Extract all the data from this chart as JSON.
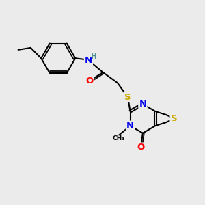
{
  "background_color": "#ebebeb",
  "bond_color": "#000000",
  "bond_width": 1.5,
  "atom_colors": {
    "O": "#ff0000",
    "N": "#0000ee",
    "S": "#ccaa00",
    "H": "#4a9090",
    "C": "#000000"
  },
  "font_size": 8.5,
  "fig_width": 3.0,
  "fig_height": 3.0,
  "dpi": 100
}
